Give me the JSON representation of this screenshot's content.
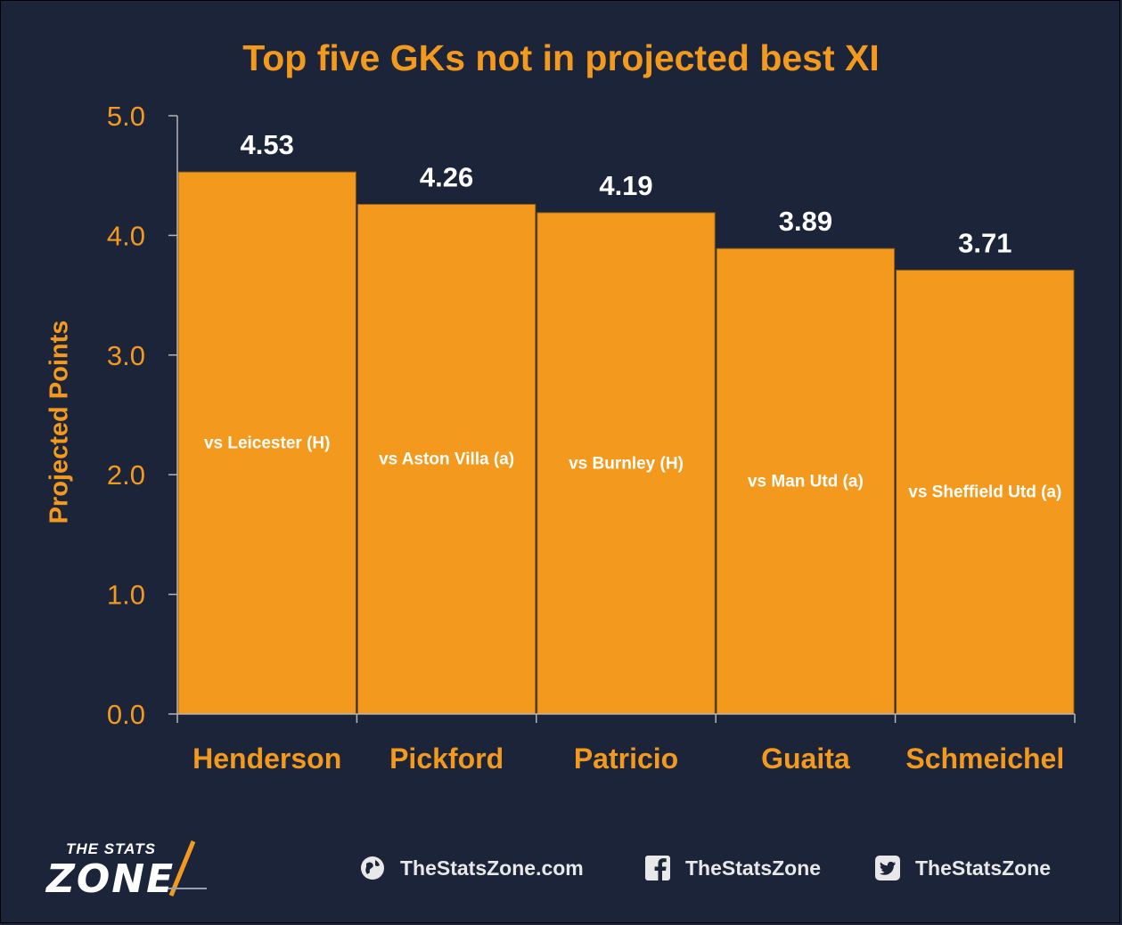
{
  "chart_data": {
    "type": "bar",
    "title": "Top five GKs not in projected best XI",
    "xlabel": "",
    "ylabel": "Projected Points",
    "ylim": [
      0,
      5
    ],
    "yticks": [
      "0.0",
      "1.0",
      "2.0",
      "3.0",
      "4.0",
      "5.0"
    ],
    "categories": [
      "Henderson",
      "Pickford",
      "Patricio",
      "Guaita",
      "Schmeichel"
    ],
    "values": [
      4.53,
      4.26,
      4.19,
      3.89,
      3.71
    ],
    "value_labels": [
      "4.53",
      "4.26",
      "4.19",
      "3.89",
      "3.71"
    ],
    "annotations": [
      "vs Leicester (H)",
      "vs Aston Villa (a)",
      "vs Burnley (H)",
      "vs Man Utd (a)",
      "vs Sheffield Utd (a)"
    ],
    "grid": false,
    "bar_color": "#f39a1e",
    "label_color": "#f39a1e",
    "value_color": "#ffffff"
  },
  "footer": {
    "brand_top": "THE STATS",
    "brand_bottom": "ZONE",
    "website": "TheStatsZone.com",
    "facebook": "TheStatsZone",
    "twitter": "TheStatsZone"
  }
}
